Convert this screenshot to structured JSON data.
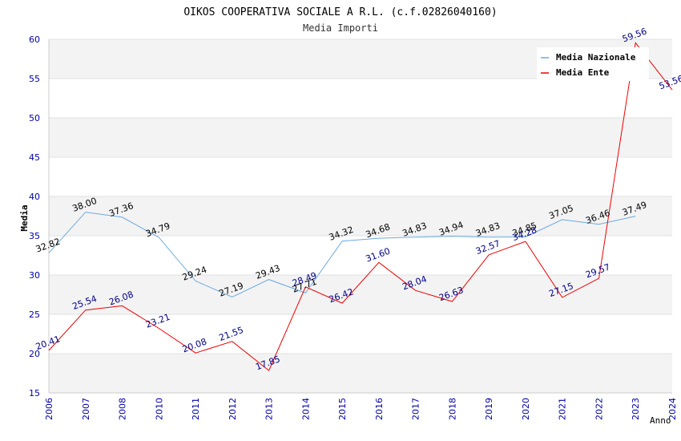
{
  "chart_data": {
    "type": "line",
    "title": "OIKOS COOPERATIVA SOCIALE A R.L. (c.f.02826040160)",
    "subtitle": "Media Importi",
    "xlabel": "Anno",
    "ylabel": "Media",
    "ylim": [
      15,
      60
    ],
    "yticks": [
      "15",
      "20",
      "25",
      "30",
      "35",
      "40",
      "45",
      "50",
      "55",
      "60"
    ],
    "categories": [
      "2006",
      "2007",
      "2008",
      "2010",
      "2011",
      "2012",
      "2013",
      "2014",
      "2015",
      "2016",
      "2017",
      "2018",
      "2019",
      "2020",
      "2021",
      "2022",
      "2023",
      "2024"
    ],
    "grid": true,
    "legend_position": "top-right",
    "colors": {
      "media_nazionale": "#6aa9e0",
      "media_ente": "#ee0000",
      "band": "#f3f3f3",
      "axis_text": "#0000aa"
    },
    "series": [
      {
        "name": "Media Nazionale",
        "values": [
          32.82,
          38.0,
          37.36,
          34.79,
          29.24,
          27.19,
          29.43,
          27.71,
          34.32,
          34.68,
          34.83,
          34.94,
          34.83,
          34.85,
          37.05,
          36.46,
          37.49,
          null
        ],
        "labels": [
          "32.82",
          "38.00",
          "37.36",
          "34.79",
          "29.24",
          "27.19",
          "29.43",
          "27.71",
          "34.32",
          "34.68",
          "34.83",
          "34.94",
          "34.83",
          "34.85",
          "37.05",
          "36.46",
          "37.49",
          ""
        ]
      },
      {
        "name": "Media Ente",
        "values": [
          20.41,
          25.54,
          26.08,
          23.21,
          20.08,
          21.55,
          17.85,
          28.49,
          26.42,
          31.6,
          28.04,
          26.63,
          32.57,
          34.28,
          27.15,
          29.57,
          59.56,
          53.56
        ],
        "labels": [
          "20.41",
          "25.54",
          "26.08",
          "23.21",
          "20.08",
          "21.55",
          "17.85",
          "28.49",
          "26.42",
          "31.60",
          "28.04",
          "26.63",
          "32.57",
          "34.28",
          "27.15",
          "29.57",
          "59.56",
          "53.56"
        ]
      }
    ]
  }
}
